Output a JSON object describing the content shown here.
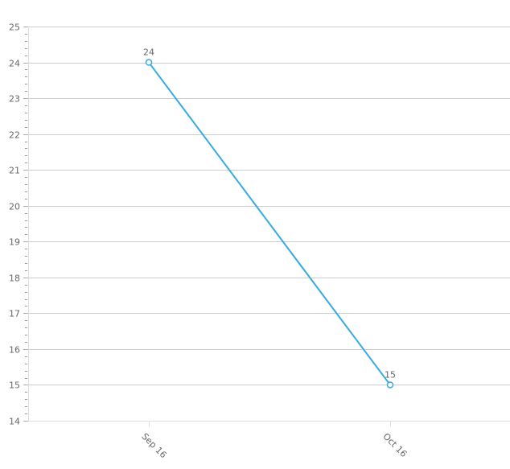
{
  "chart_data": {
    "type": "line",
    "categories": [
      "Sep 16",
      "Oct 16"
    ],
    "series": [
      {
        "values": [
          24,
          15
        ]
      }
    ],
    "data_labels": [
      "24",
      "15"
    ],
    "ylim": [
      14,
      25
    ],
    "yticks": [
      "14",
      "15",
      "16",
      "17",
      "18",
      "19",
      "20",
      "21",
      "22",
      "23",
      "24",
      "25"
    ],
    "grid": true,
    "line_color": "#35a9e8",
    "grid_color": "#cccccc",
    "xlabel": "",
    "ylabel": ""
  }
}
